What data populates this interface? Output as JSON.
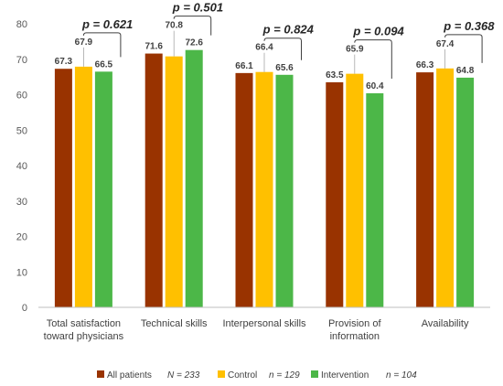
{
  "chart_data": {
    "type": "bar",
    "categories": [
      [
        "Total satisfaction",
        "toward physicians"
      ],
      [
        "Technical skills"
      ],
      [
        "Interpersonal skills"
      ],
      [
        "Provision of",
        "information"
      ],
      [
        "Availability"
      ]
    ],
    "series": [
      {
        "name": "All patients",
        "color": "#993300",
        "values": [
          67.3,
          71.6,
          66.1,
          63.5,
          66.3
        ],
        "labels": [
          "67.3",
          "71.6",
          "66.1",
          "63.5",
          "66.3"
        ]
      },
      {
        "name": "Control",
        "color": "#FFC000",
        "values": [
          67.9,
          70.8,
          66.4,
          65.9,
          67.4
        ],
        "labels": [
          "67.9",
          "70.8",
          "66.4",
          "65.9",
          "67.4"
        ]
      },
      {
        "name": "Intervention",
        "color": "#4CB748",
        "values": [
          66.5,
          72.6,
          65.6,
          60.4,
          64.8
        ],
        "labels": [
          "66.5",
          "72.6",
          "65.6",
          "60.4",
          "64.8"
        ]
      }
    ],
    "legend_n": [
      "N = 233",
      "n = 129",
      "n = 104"
    ],
    "annotations": [
      "p = 0.621",
      "p = 0.501",
      "p = 0.824",
      "p = 0.094",
      "p = 0.368"
    ],
    "ylim": [
      0,
      80
    ],
    "yticks": [
      0,
      10,
      20,
      30,
      40,
      50,
      60,
      70,
      80
    ],
    "ytick_labels": [
      "0",
      "10",
      "20",
      "30",
      "40",
      "50",
      "60",
      "70",
      "80"
    ],
    "grid": false,
    "legend": "bottom"
  }
}
